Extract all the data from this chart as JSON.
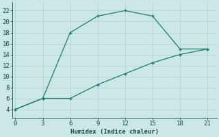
{
  "xlabel": "Humidex (Indice chaleur)",
  "line1_x": [
    0,
    3,
    6,
    9,
    12,
    15,
    18,
    21
  ],
  "line1_y": [
    4,
    6,
    18,
    21,
    22,
    21,
    15,
    15
  ],
  "line2_x": [
    0,
    3,
    6,
    9,
    12,
    15,
    18,
    21
  ],
  "line2_y": [
    4,
    6,
    6,
    8.5,
    10.5,
    12.5,
    14,
    15
  ],
  "line_color": "#1a7a6e",
  "bg_color": "#cce8e6",
  "grid_color": "#b0d4d0",
  "xlim": [
    -0.3,
    22
  ],
  "ylim": [
    2.5,
    23.5
  ],
  "xticks": [
    0,
    3,
    6,
    9,
    12,
    15,
    18,
    21
  ],
  "yticks": [
    4,
    6,
    8,
    10,
    12,
    14,
    16,
    18,
    20,
    22
  ]
}
